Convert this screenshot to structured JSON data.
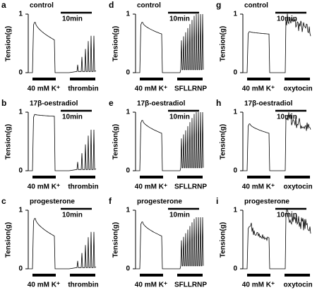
{
  "panels": [
    {
      "letter": "a",
      "condition": "control",
      "y_label": "Tension(g)",
      "y_ticks": [
        "1",
        "0"
      ],
      "scale_bar": "10min",
      "stimuli": [
        "40 mM K⁺",
        "thrombin"
      ]
    },
    {
      "letter": "b",
      "condition": "17β-oestradiol",
      "y_label": "Tension(g)",
      "y_ticks": [
        "1",
        "0"
      ],
      "scale_bar": "10min",
      "stimuli": [
        "40 mM K⁺",
        "thrombin"
      ]
    },
    {
      "letter": "c",
      "condition": "progesterone",
      "y_label": "Tension(g)",
      "y_ticks": [
        "1",
        "0"
      ],
      "scale_bar": "10min",
      "stimuli": [
        "40 mM K⁺",
        "thrombin"
      ]
    },
    {
      "letter": "d",
      "condition": "control",
      "y_label": "Tension(g)",
      "y_ticks": [
        "1",
        "0"
      ],
      "scale_bar": "10min",
      "stimuli": [
        "40 mM K⁺",
        "SFLLRNP"
      ]
    },
    {
      "letter": "e",
      "condition": "17β-oestradiol",
      "y_label": "Tension(g)",
      "y_ticks": [
        "1",
        "0"
      ],
      "scale_bar": "10min",
      "stimuli": [
        "40 mM K⁺",
        "SFLLRNP"
      ]
    },
    {
      "letter": "f",
      "condition": "progesterone",
      "y_label": "Tension(g)",
      "y_ticks": [
        "1",
        "0"
      ],
      "scale_bar": "10min",
      "stimuli": [
        "40 mM K⁺",
        "SFLLRNP"
      ]
    },
    {
      "letter": "g",
      "condition": "control",
      "y_label": "Tension(g)",
      "y_ticks": [
        "1",
        "0"
      ],
      "scale_bar": "10min",
      "stimuli": [
        "40 mM K⁺",
        "oxytocin"
      ]
    },
    {
      "letter": "h",
      "condition": "17β-oestradiol",
      "y_label": "Tension(g)",
      "y_ticks": [
        "1",
        "0"
      ],
      "scale_bar": "10min",
      "stimuli": [
        "40 mM K⁺",
        "oxytocin"
      ]
    },
    {
      "letter": "i",
      "condition": "progesterone",
      "y_label": "Tension(g)",
      "y_ticks": [
        "1",
        "0"
      ],
      "scale_bar": "10min",
      "stimuli": [
        "40 mM K⁺",
        "oxytocin"
      ]
    }
  ]
}
